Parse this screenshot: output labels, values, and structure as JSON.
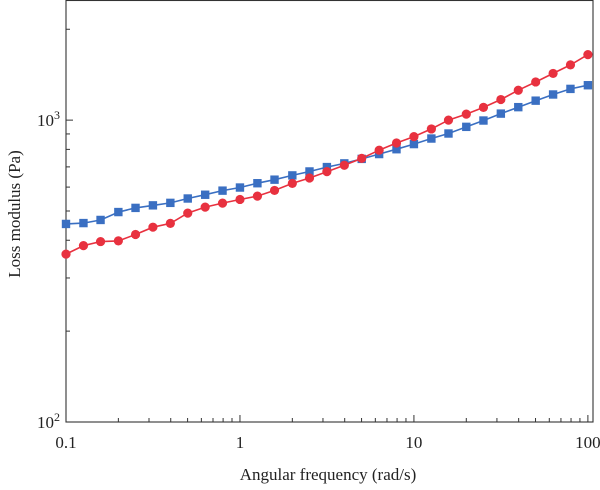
{
  "chart_data": {
    "type": "line",
    "xlabel": "Angular frequency (rad/s)",
    "ylabel": "Loss modulus (Pa)",
    "xscale": "log",
    "yscale": "log",
    "xlim": [
      0.1,
      107
    ],
    "ylim": [
      100,
      2500
    ],
    "grid": false,
    "legend": "none",
    "x_ticks": [
      {
        "value": 0.1,
        "label": "0.1"
      },
      {
        "value": 1,
        "label": "1"
      },
      {
        "value": 10,
        "label": "10"
      },
      {
        "value": 100,
        "label": "100"
      }
    ],
    "y_ticks": [
      {
        "value": 100,
        "base": "10",
        "exp": "2"
      },
      {
        "value": 1000,
        "base": "10",
        "exp": "3"
      }
    ],
    "series": [
      {
        "marker": "square",
        "color": "#3a6fc2",
        "x": [
          0.1,
          0.126,
          0.158,
          0.2,
          0.251,
          0.316,
          0.398,
          0.501,
          0.631,
          0.794,
          1,
          1.26,
          1.58,
          2,
          2.51,
          3.16,
          3.98,
          5.01,
          6.31,
          7.94,
          10,
          12.6,
          15.8,
          20,
          25.1,
          31.6,
          39.8,
          50.1,
          63.1,
          79.4,
          100
        ],
        "values": [
          453,
          456,
          467,
          496,
          512,
          522,
          532,
          550,
          566,
          584,
          598,
          618,
          635,
          656,
          676,
          699,
          719,
          744,
          772,
          801,
          833,
          869,
          903,
          950,
          997,
          1051,
          1104,
          1160,
          1216,
          1269,
          1305
        ]
      },
      {
        "marker": "circle",
        "color": "#e8313f",
        "x": [
          0.1,
          0.126,
          0.158,
          0.2,
          0.251,
          0.316,
          0.398,
          0.501,
          0.631,
          0.794,
          1,
          1.26,
          1.58,
          2,
          2.51,
          3.16,
          3.98,
          5.01,
          6.31,
          7.94,
          10,
          12.6,
          15.8,
          20,
          25.1,
          31.6,
          39.8,
          50.1,
          63.1,
          79.4,
          100
        ],
        "values": [
          360,
          384,
          396,
          398,
          418,
          442,
          455,
          492,
          515,
          531,
          546,
          560,
          585,
          617,
          643,
          675,
          709,
          747,
          795,
          840,
          882,
          935,
          1000,
          1047,
          1102,
          1170,
          1256,
          1338,
          1428,
          1524,
          1648
        ]
      }
    ]
  }
}
